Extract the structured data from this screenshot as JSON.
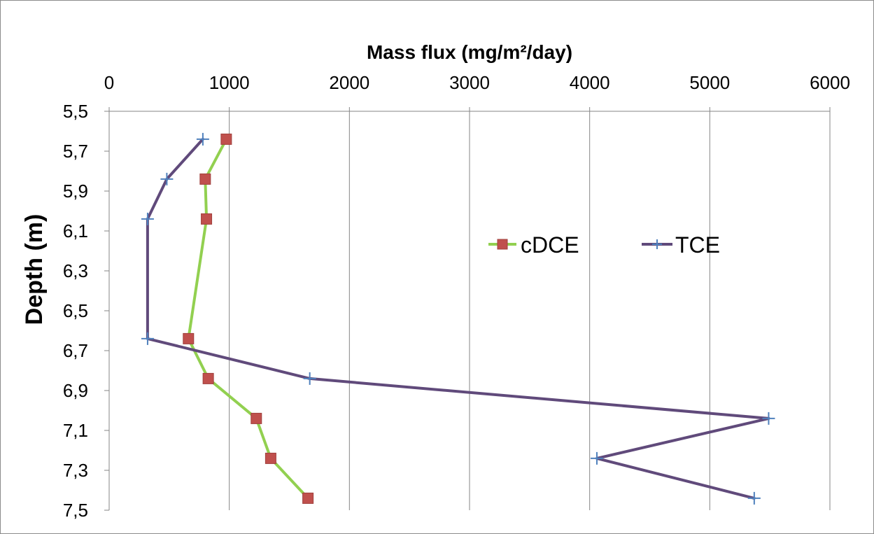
{
  "chart_data": {
    "type": "line",
    "xlabel": "Mass flux (mg/m²/day)",
    "ylabel": "Depth (m)",
    "xlim": [
      0,
      6000
    ],
    "ylim": [
      5.5,
      7.5
    ],
    "y_inverted": true,
    "x_ticks": [
      "0",
      "1000",
      "2000",
      "3000",
      "4000",
      "5000",
      "6000"
    ],
    "y_ticks": [
      "5,5",
      "5,7",
      "5,9",
      "6,1",
      "6,3",
      "6,5",
      "6,7",
      "6,9",
      "7,1",
      "7,3",
      "7,5"
    ],
    "x_axis_position": "top",
    "grid": "vertical",
    "legend_position": "right",
    "series": [
      {
        "name": "cDCE",
        "color": "#92d050",
        "marker": "square",
        "marker_color": "#c0504d",
        "x": [
          975,
          800,
          810,
          660,
          825,
          1225,
          1345,
          1655
        ],
        "y": [
          5.64,
          5.84,
          6.04,
          6.64,
          6.84,
          7.04,
          7.24,
          7.44
        ]
      },
      {
        "name": "TCE",
        "color": "#604a7b",
        "marker": "plus",
        "marker_color": "#4f81bd",
        "x": [
          780,
          480,
          320,
          320,
          1670,
          5490,
          4060,
          5370
        ],
        "y": [
          5.64,
          5.84,
          6.04,
          6.64,
          6.84,
          7.04,
          7.24,
          7.44
        ]
      }
    ]
  }
}
